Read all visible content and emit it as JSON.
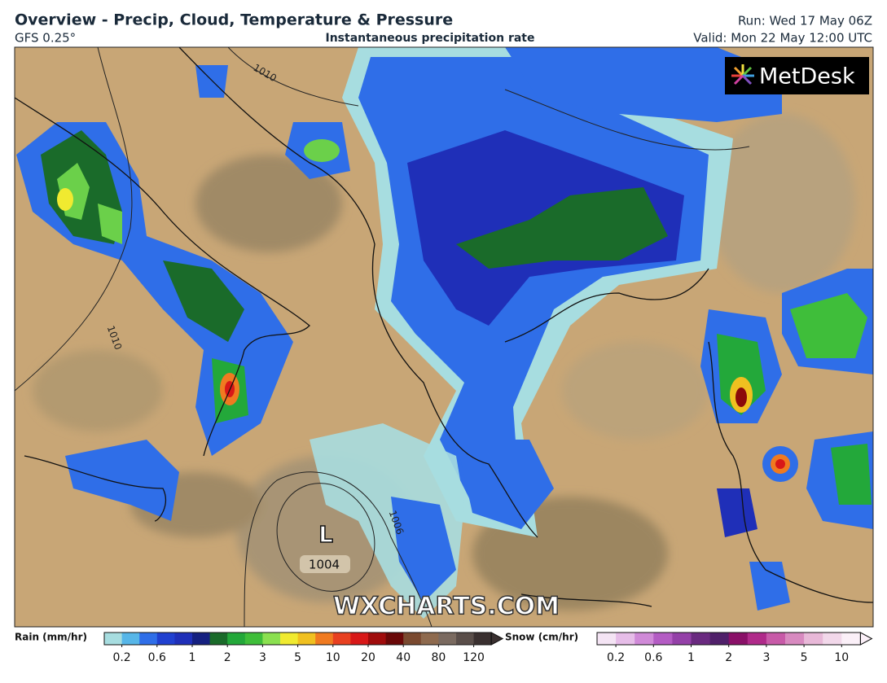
{
  "header": {
    "title": "Overview - Precip, Cloud, Temperature & Pressure",
    "model": "GFS 0.25°",
    "subtitle": "Instantaneous precipitation rate",
    "run": "Run: Wed 17 May 06Z",
    "valid": "Valid: Mon 22 May 12:00 UTC"
  },
  "map": {
    "logo": "MetDesk",
    "watermark": "WXCHARTS.COM",
    "labels": [
      "1010",
      "1010",
      "1006",
      "L",
      "1004"
    ]
  },
  "legend": {
    "rain": {
      "title": "Rain (mm/hr)",
      "ticks": [
        0.2,
        0.6,
        1,
        2,
        3,
        5,
        10,
        20,
        40,
        80,
        120
      ]
    },
    "snow": {
      "title": "Snow (cm/hr)",
      "ticks": [
        0.2,
        0.6,
        1,
        2,
        3,
        5,
        10
      ]
    }
  }
}
